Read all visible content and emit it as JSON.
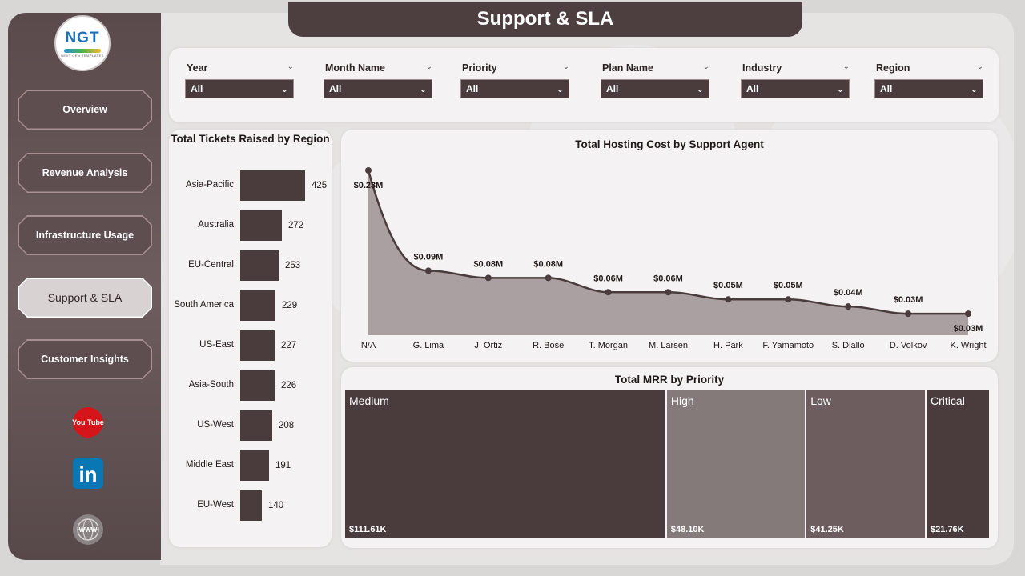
{
  "title": "Support & SLA",
  "logo": {
    "text": "NGT",
    "sub": "NEXT GEN TEMPLATES"
  },
  "nav": [
    {
      "label": "Overview",
      "active": false
    },
    {
      "label": "Revenue Analysis",
      "active": false
    },
    {
      "label": "Infrastructure Usage",
      "active": false
    },
    {
      "label": "Support & SLA",
      "active": true
    },
    {
      "label": "Customer Insights",
      "active": false
    }
  ],
  "social": {
    "youtube_text": "You Tube",
    "linkedin_text": "in",
    "web_text": "WWW"
  },
  "filters": [
    {
      "label": "Year",
      "value": "All"
    },
    {
      "label": "Month Name",
      "value": "All"
    },
    {
      "label": "Priority",
      "value": "All"
    },
    {
      "label": "Plan Name",
      "value": "All"
    },
    {
      "label": "Industry",
      "value": "All"
    },
    {
      "label": "Region",
      "value": "All"
    }
  ],
  "colors": {
    "bar": "#4a3c3d",
    "line": "#4a3c3d",
    "area": "#aba0a1",
    "accent_dark": "#4d3f40",
    "tile_dark": "#4a3c3d",
    "tile_medium": "#857a7a",
    "tile_light": "#6d5d5e"
  },
  "chart_data": [
    {
      "type": "bar",
      "title": "Total Tickets Raised by Region",
      "categories": [
        "Asia-Pacific",
        "Australia",
        "EU-Central",
        "South America",
        "US-East",
        "Asia-South",
        "US-West",
        "Middle East",
        "EU-West"
      ],
      "values": [
        425,
        272,
        253,
        229,
        227,
        226,
        208,
        191,
        140
      ],
      "orientation": "horizontal"
    },
    {
      "type": "area",
      "title": "Total Hosting Cost by Support Agent",
      "categories": [
        "N/A",
        "G. Lima",
        "J. Ortiz",
        "R. Bose",
        "T. Morgan",
        "M. Larsen",
        "H. Park",
        "F. Yamamoto",
        "S. Diallo",
        "D. Volkov",
        "K. Wright"
      ],
      "values": [
        0.23,
        0.09,
        0.08,
        0.08,
        0.06,
        0.06,
        0.05,
        0.05,
        0.04,
        0.03,
        0.03
      ],
      "labels": [
        "$0.23M",
        "$0.09M",
        "$0.08M",
        "$0.08M",
        "$0.06M",
        "$0.06M",
        "$0.05M",
        "$0.05M",
        "$0.04M",
        "$0.03M",
        "$0.03M"
      ]
    },
    {
      "type": "treemap",
      "title": "Total MRR by Priority",
      "categories": [
        "Medium",
        "High",
        "Low",
        "Critical"
      ],
      "values": [
        111.61,
        48.1,
        41.25,
        21.76
      ],
      "labels": [
        "$111.61K",
        "$48.10K",
        "$41.25K",
        "$21.76K"
      ]
    }
  ]
}
